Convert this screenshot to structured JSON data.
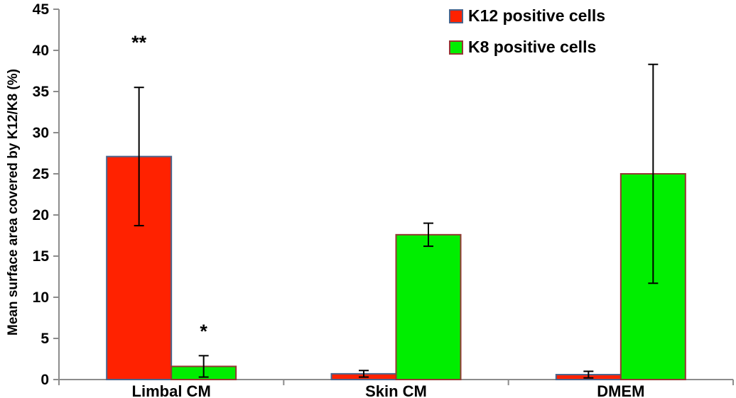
{
  "chart_data": {
    "type": "bar",
    "title": "",
    "xlabel": "",
    "ylabel": "Mean surface area covered by K12/K8 (%)",
    "ylim": [
      0,
      45
    ],
    "yticks": [
      0,
      5,
      10,
      15,
      20,
      25,
      30,
      35,
      40,
      45
    ],
    "categories": [
      "Limbal CM",
      "Skin CM",
      "DMEM"
    ],
    "series": [
      {
        "name": "K12 positive cells",
        "fill_color": "#FF2200",
        "border_color": "#4A648C",
        "values": [
          27.1,
          0.7,
          0.6
        ],
        "errors": [
          8.4,
          0.4,
          0.4
        ]
      },
      {
        "name": "K8 positive cells",
        "fill_color": "#00EE00",
        "border_color": "#953735",
        "values": [
          1.6,
          17.6,
          25.0
        ],
        "errors": [
          1.3,
          1.4,
          13.3
        ]
      }
    ],
    "annotations": [
      {
        "text": "**",
        "series_index": 0,
        "category_index": 0,
        "y": 41.3
      },
      {
        "text": "*",
        "series_index": 1,
        "category_index": 0,
        "y": 6.2
      }
    ],
    "legend_position": "top-right",
    "grid": false,
    "axis_color": "#8C8C8C",
    "error_bar_color": "#000000",
    "text_color": "#000000"
  }
}
